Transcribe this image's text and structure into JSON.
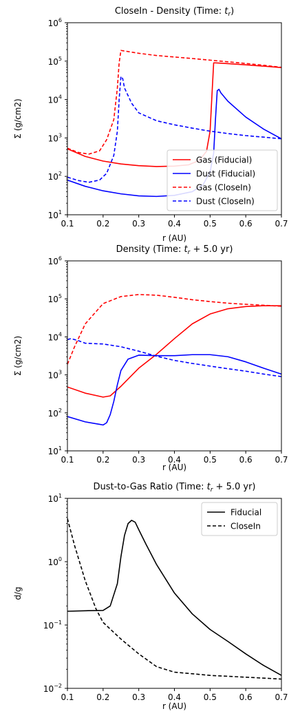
{
  "chart_data": [
    {
      "type": "line",
      "title_parts": [
        "CloseIn - Density (Time: ",
        "t",
        "r",
        ")"
      ],
      "xlabel": "r (AU)",
      "ylabel": "Σ (g/cm2)",
      "xlim": [
        0.1,
        0.7
      ],
      "ylim": [
        10,
        1000000
      ],
      "yscale": "log",
      "grid": false,
      "legend_position": "lower-right",
      "x_ticks": [
        0.1,
        0.2,
        0.3,
        0.4,
        0.5,
        0.6,
        0.7
      ],
      "x_tick_labels": [
        "0.1",
        "0.2",
        "0.3",
        "0.4",
        "0.5",
        "0.6",
        "0.7"
      ],
      "y_ticks": [
        10,
        100,
        1000,
        10000,
        100000,
        1000000
      ],
      "y_tick_labels": [
        [
          "10",
          "1"
        ],
        [
          "10",
          "2"
        ],
        [
          "10",
          "3"
        ],
        [
          "10",
          "4"
        ],
        [
          "10",
          "5"
        ],
        [
          "10",
          "6"
        ]
      ],
      "series": [
        {
          "name": "Gas (Fiducial)",
          "color": "#ff0000",
          "dash": "solid",
          "x": [
            0.1,
            0.15,
            0.2,
            0.25,
            0.3,
            0.35,
            0.4,
            0.44,
            0.47,
            0.49,
            0.5,
            0.505,
            0.51,
            0.515,
            0.55,
            0.6,
            0.65,
            0.7
          ],
          "y": [
            520,
            330,
            250,
            210,
            190,
            180,
            185,
            200,
            260,
            450,
            1500,
            12000,
            90000,
            90000,
            86000,
            80000,
            74000,
            68000
          ]
        },
        {
          "name": "Dust (Fiducial)",
          "color": "#0000ff",
          "dash": "solid",
          "x": [
            0.1,
            0.15,
            0.2,
            0.25,
            0.3,
            0.35,
            0.4,
            0.45,
            0.48,
            0.5,
            0.51,
            0.515,
            0.52,
            0.525,
            0.53,
            0.55,
            0.6,
            0.65,
            0.7
          ],
          "y": [
            80,
            55,
            42,
            35,
            31,
            30,
            32,
            40,
            60,
            130,
            400,
            3000,
            17000,
            18500,
            15000,
            9000,
            3500,
            1700,
            950
          ]
        },
        {
          "name": "Gas (CloseIn)",
          "color": "#ff0000",
          "dash": "dashed",
          "x": [
            0.1,
            0.13,
            0.16,
            0.19,
            0.21,
            0.23,
            0.24,
            0.245,
            0.25,
            0.3,
            0.35,
            0.4,
            0.45,
            0.5,
            0.55,
            0.6,
            0.65,
            0.7
          ],
          "y": [
            540,
            420,
            380,
            460,
            900,
            3000,
            20000,
            90000,
            190000,
            160000,
            140000,
            128000,
            117000,
            106000,
            96000,
            87000,
            78000,
            69000
          ]
        },
        {
          "name": "Dust (CloseIn)",
          "color": "#0000ff",
          "dash": "dashed",
          "x": [
            0.1,
            0.13,
            0.16,
            0.19,
            0.21,
            0.23,
            0.24,
            0.245,
            0.25,
            0.255,
            0.26,
            0.28,
            0.3,
            0.35,
            0.4,
            0.45,
            0.5,
            0.55,
            0.6,
            0.65,
            0.7
          ],
          "y": [
            95,
            78,
            70,
            80,
            120,
            350,
            1500,
            10000,
            40000,
            35000,
            20000,
            8000,
            4500,
            2800,
            2200,
            1800,
            1500,
            1300,
            1150,
            1050,
            950
          ]
        }
      ]
    },
    {
      "type": "line",
      "title_parts": [
        "Density  (Time: ",
        "t",
        "r",
        " + 5.0 yr)"
      ],
      "xlabel": "r (AU)",
      "ylabel": "Σ (g/cm2)",
      "xlim": [
        0.1,
        0.7
      ],
      "ylim": [
        10,
        1000000
      ],
      "yscale": "log",
      "grid": false,
      "legend_position": "none",
      "x_ticks": [
        0.1,
        0.2,
        0.3,
        0.4,
        0.5,
        0.6,
        0.7
      ],
      "x_tick_labels": [
        "0.1",
        "0.2",
        "0.3",
        "0.4",
        "0.5",
        "0.6",
        "0.7"
      ],
      "y_ticks": [
        10,
        100,
        1000,
        10000,
        100000,
        1000000
      ],
      "y_tick_labels": [
        [
          "10",
          "1"
        ],
        [
          "10",
          "2"
        ],
        [
          "10",
          "3"
        ],
        [
          "10",
          "4"
        ],
        [
          "10",
          "5"
        ],
        [
          "10",
          "6"
        ]
      ],
      "series": [
        {
          "color": "#ff0000",
          "dash": "solid",
          "x": [
            0.1,
            0.15,
            0.2,
            0.22,
            0.25,
            0.3,
            0.35,
            0.4,
            0.45,
            0.5,
            0.55,
            0.6,
            0.65,
            0.7
          ],
          "y": [
            480,
            330,
            260,
            280,
            500,
            1500,
            3500,
            9000,
            22000,
            40000,
            55000,
            63000,
            66000,
            66000
          ]
        },
        {
          "color": "#0000ff",
          "dash": "solid",
          "x": [
            0.1,
            0.15,
            0.19,
            0.2,
            0.21,
            0.22,
            0.23,
            0.24,
            0.25,
            0.27,
            0.3,
            0.35,
            0.4,
            0.45,
            0.5,
            0.55,
            0.6,
            0.65,
            0.7
          ],
          "y": [
            80,
            58,
            50,
            48,
            55,
            90,
            200,
            550,
            1300,
            2600,
            3300,
            3200,
            3200,
            3400,
            3400,
            3000,
            2200,
            1500,
            1050
          ]
        },
        {
          "color": "#ff0000",
          "dash": "dashed",
          "x": [
            0.1,
            0.12,
            0.15,
            0.2,
            0.25,
            0.3,
            0.35,
            0.4,
            0.45,
            0.5,
            0.55,
            0.6,
            0.65,
            0.7
          ],
          "y": [
            1900,
            5500,
            22000,
            75000,
            115000,
            130000,
            125000,
            110000,
            95000,
            85000,
            77000,
            72000,
            68000,
            64000
          ]
        },
        {
          "color": "#0000ff",
          "dash": "dashed",
          "x": [
            0.1,
            0.11,
            0.13,
            0.15,
            0.2,
            0.25,
            0.3,
            0.35,
            0.4,
            0.45,
            0.5,
            0.55,
            0.6,
            0.65,
            0.7
          ],
          "y": [
            8500,
            9000,
            8000,
            6800,
            6500,
            5500,
            4200,
            3100,
            2400,
            2000,
            1700,
            1450,
            1250,
            1050,
            900
          ]
        }
      ]
    },
    {
      "type": "line",
      "title_parts": [
        "Dust-to-Gas Ratio (Time: ",
        "t",
        "r",
        " + 5.0 yr)"
      ],
      "xlabel": "r (AU)",
      "ylabel": "d/g",
      "xlim": [
        0.1,
        0.7
      ],
      "ylim": [
        0.01,
        10
      ],
      "yscale": "log",
      "grid": false,
      "legend_position": "top-right",
      "x_ticks": [
        0.1,
        0.2,
        0.3,
        0.4,
        0.5,
        0.6,
        0.7
      ],
      "x_tick_labels": [
        "0.1",
        "0.2",
        "0.3",
        "0.4",
        "0.5",
        "0.6",
        "0.7"
      ],
      "y_ticks": [
        0.01,
        0.1,
        1,
        10
      ],
      "y_tick_labels": [
        [
          "10",
          "−2"
        ],
        [
          "10",
          "−1"
        ],
        [
          "10",
          "0"
        ],
        [
          "10",
          "1"
        ]
      ],
      "series": [
        {
          "name": "Fiducial",
          "color": "#000000",
          "dash": "solid",
          "x": [
            0.1,
            0.15,
            0.2,
            0.22,
            0.24,
            0.25,
            0.26,
            0.27,
            0.28,
            0.29,
            0.3,
            0.32,
            0.35,
            0.4,
            0.45,
            0.5,
            0.55,
            0.6,
            0.65,
            0.7
          ],
          "y": [
            0.165,
            0.168,
            0.17,
            0.2,
            0.45,
            1.2,
            2.6,
            4.0,
            4.5,
            4.2,
            3.2,
            1.9,
            0.9,
            0.32,
            0.15,
            0.085,
            0.055,
            0.035,
            0.023,
            0.016
          ]
        },
        {
          "name": "CloseIn",
          "color": "#000000",
          "dash": "dashed",
          "x": [
            0.1,
            0.12,
            0.15,
            0.18,
            0.2,
            0.25,
            0.3,
            0.35,
            0.4,
            0.45,
            0.5,
            0.55,
            0.6,
            0.65,
            0.7
          ],
          "y": [
            4.8,
            1.8,
            0.5,
            0.18,
            0.11,
            0.06,
            0.035,
            0.022,
            0.018,
            0.017,
            0.016,
            0.0155,
            0.015,
            0.0145,
            0.014
          ]
        }
      ]
    }
  ]
}
